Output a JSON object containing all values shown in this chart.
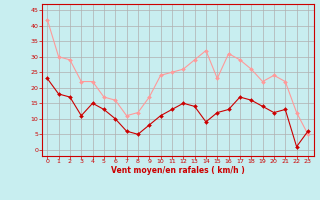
{
  "x": [
    0,
    1,
    2,
    3,
    4,
    5,
    6,
    7,
    8,
    9,
    10,
    11,
    12,
    13,
    14,
    15,
    16,
    17,
    18,
    19,
    20,
    21,
    22,
    23
  ],
  "mean_y": [
    23,
    18,
    17,
    11,
    15,
    13,
    10,
    6,
    5,
    8,
    11,
    13,
    15,
    14,
    9,
    12,
    13,
    17,
    16,
    14,
    12,
    13,
    1,
    6
  ],
  "gust_y": [
    42,
    30,
    29,
    22,
    22,
    17,
    16,
    11,
    12,
    17,
    24,
    25,
    26,
    29,
    32,
    23,
    31,
    29,
    26,
    22,
    24,
    22,
    12,
    5
  ],
  "background_color": "#c8eef0",
  "grid_color": "#b0b0b0",
  "mean_color": "#cc0000",
  "gust_color": "#ff9999",
  "xlabel": "Vent moyen/en rafales ( km/h )",
  "yticks": [
    0,
    5,
    10,
    15,
    20,
    25,
    30,
    35,
    40,
    45
  ],
  "xticks": [
    0,
    1,
    2,
    3,
    4,
    5,
    6,
    7,
    8,
    9,
    10,
    11,
    12,
    13,
    14,
    15,
    16,
    17,
    18,
    19,
    20,
    21,
    22,
    23
  ],
  "ylim": [
    -2,
    47
  ],
  "xlim": [
    -0.5,
    23.5
  ]
}
